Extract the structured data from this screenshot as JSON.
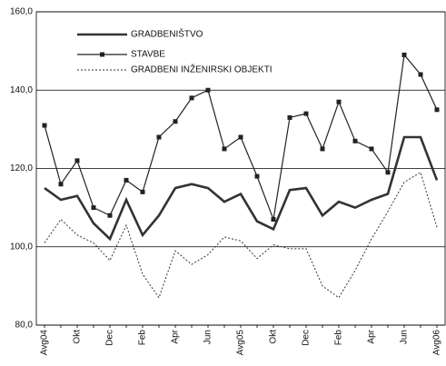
{
  "chart_data": {
    "type": "line",
    "categories": [
      "Avg04",
      null,
      "Okt",
      null,
      "Dec",
      null,
      "Feb",
      null,
      "Apr",
      null,
      "Jun",
      null,
      "Avg05",
      null,
      "Okt",
      null,
      "Dec",
      null,
      "Feb",
      null,
      "Apr",
      null,
      "Jun",
      null,
      "Avg06"
    ],
    "series": [
      {
        "name": "GRADBENIŠTVO",
        "color": "#333333",
        "style": "thick",
        "values": [
          115,
          112,
          113,
          106,
          102,
          112,
          103,
          108,
          115,
          116,
          115,
          111.5,
          113.5,
          106.5,
          104.5,
          114.5,
          115,
          108,
          111.5,
          110,
          112,
          113.5,
          128,
          128,
          117
        ]
      },
      {
        "name": "STAVBE",
        "color": "#222222",
        "style": "marker",
        "values": [
          131,
          116,
          122,
          110,
          108,
          117,
          114,
          128,
          132,
          138,
          140,
          125,
          128,
          118,
          107,
          133,
          134,
          125,
          137,
          127,
          125,
          119,
          149,
          144,
          135
        ]
      },
      {
        "name": "GRADBENI INŽENIRSKI OBJEKTI",
        "color": "#333333",
        "style": "dotted",
        "values": [
          101,
          107,
          103,
          101,
          96.5,
          105.5,
          93,
          87,
          99,
          95.5,
          98,
          102.5,
          101.5,
          97,
          100.5,
          99.5,
          99.5,
          90,
          87,
          94,
          102,
          109,
          116.5,
          119,
          105
        ]
      }
    ],
    "ylim": [
      80,
      160
    ],
    "yticks": [
      {
        "value": 80,
        "label": "80,0"
      },
      {
        "value": 100,
        "label": "100,0"
      },
      {
        "value": 120,
        "label": "120,0"
      },
      {
        "value": 140,
        "label": "140,0"
      },
      {
        "value": 160,
        "label": "160,0"
      }
    ],
    "grid": true,
    "legend": "top-left"
  }
}
